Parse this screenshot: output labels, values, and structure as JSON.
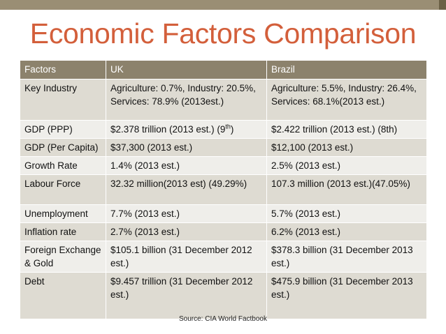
{
  "slide": {
    "title": "Economic Factors Comparison",
    "source": "Source: CIA World Factbook",
    "colors": {
      "title": "#d35f3b",
      "header": "#8c826c",
      "row_dark": "#dedbd2",
      "row_light": "#efeeea",
      "top_bar": "#9a8e74"
    }
  },
  "table": {
    "headers": [
      "Factors",
      "UK",
      "Brazil"
    ],
    "rows": [
      {
        "factor": "Key Industry",
        "uk": "Agriculture: 0.7%, Industry: 20.5%, Services: 78.9% (2013est.)",
        "brazil": "Agriculture: 5.5%, Industry: 26.4%, Services: 68.1%(2013 est.)"
      },
      {
        "factor": "GDP (PPP)",
        "uk": "$2.378 trillion (2013 est.) (9",
        "uk_sup": "th",
        "uk_tail": ")",
        "brazil": "$2.422 trillion (2013 est.) (8th)"
      },
      {
        "factor": "GDP (Per Capita)",
        "uk": "$37,300 (2013 est.)",
        "brazil": "$12,100 (2013 est.)"
      },
      {
        "factor": "Growth Rate",
        "uk": "1.4% (2013 est.)",
        "brazil": "2.5% (2013 est.)"
      },
      {
        "factor": "Labour Force",
        "uk": "32.32 million(2013 est) (49.29%)",
        "brazil": "107.3 million (2013 est.)(47.05%)"
      },
      {
        "factor": "Unemployment",
        "uk": "7.7% (2013 est.)",
        "brazil": "5.7% (2013 est.)"
      },
      {
        "factor": "Inflation rate",
        "uk": "2.7% (2013 est.)",
        "brazil": "6.2% (2013 est.)"
      },
      {
        "factor": "Foreign Exchange & Gold",
        "uk": "$105.1 billion (31 December 2012 est.)",
        "brazil": "$378.3 billion (31 December 2013 est.)"
      },
      {
        "factor": "Debt",
        "uk": "$9.457 trillion (31 December 2012 est.)",
        "brazil": "$475.9 billion (31 December 2013 est.)"
      }
    ]
  }
}
